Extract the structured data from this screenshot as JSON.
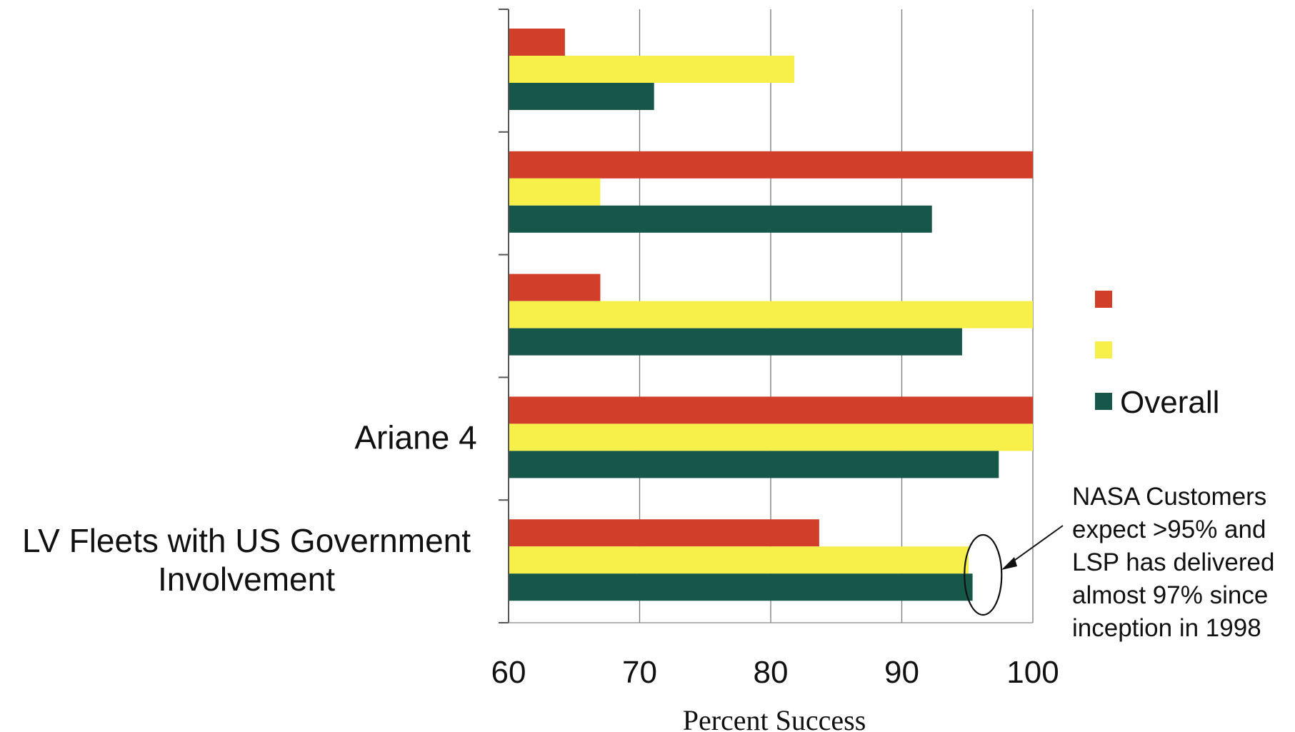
{
  "chart_data": {
    "type": "bar",
    "orientation": "horizontal",
    "categories": [
      "",
      "",
      "",
      "Ariane 4",
      "LV Fleets with US Government Involvement"
    ],
    "category_label_lines": [
      [],
      [],
      [],
      [
        "Ariane 4"
      ],
      [
        "LV Fleets with US Government",
        "Involvement"
      ]
    ],
    "series": [
      {
        "name": "",
        "color": "#d13f2a",
        "values": [
          64.3,
          100,
          67,
          100,
          83.7
        ]
      },
      {
        "name": "",
        "color": "#f7f04a",
        "values": [
          81.8,
          67,
          100,
          100,
          95.1
        ]
      },
      {
        "name": "Overall",
        "color": "#16574a",
        "values": [
          71.1,
          92.3,
          94.6,
          97.4,
          95.4
        ]
      }
    ],
    "xlabel": "Percent Success",
    "ylabel": "",
    "xlim": [
      60,
      100
    ],
    "xticks": [
      60,
      70,
      80,
      90,
      100
    ],
    "grid": "vertical",
    "legend_position": "right",
    "annotation": {
      "lines": [
        "NASA Customers",
        "expect  >95% and",
        "LSP has delivered",
        "almost 97% since",
        "inception in 1998"
      ],
      "target_value": 96.2
    }
  }
}
